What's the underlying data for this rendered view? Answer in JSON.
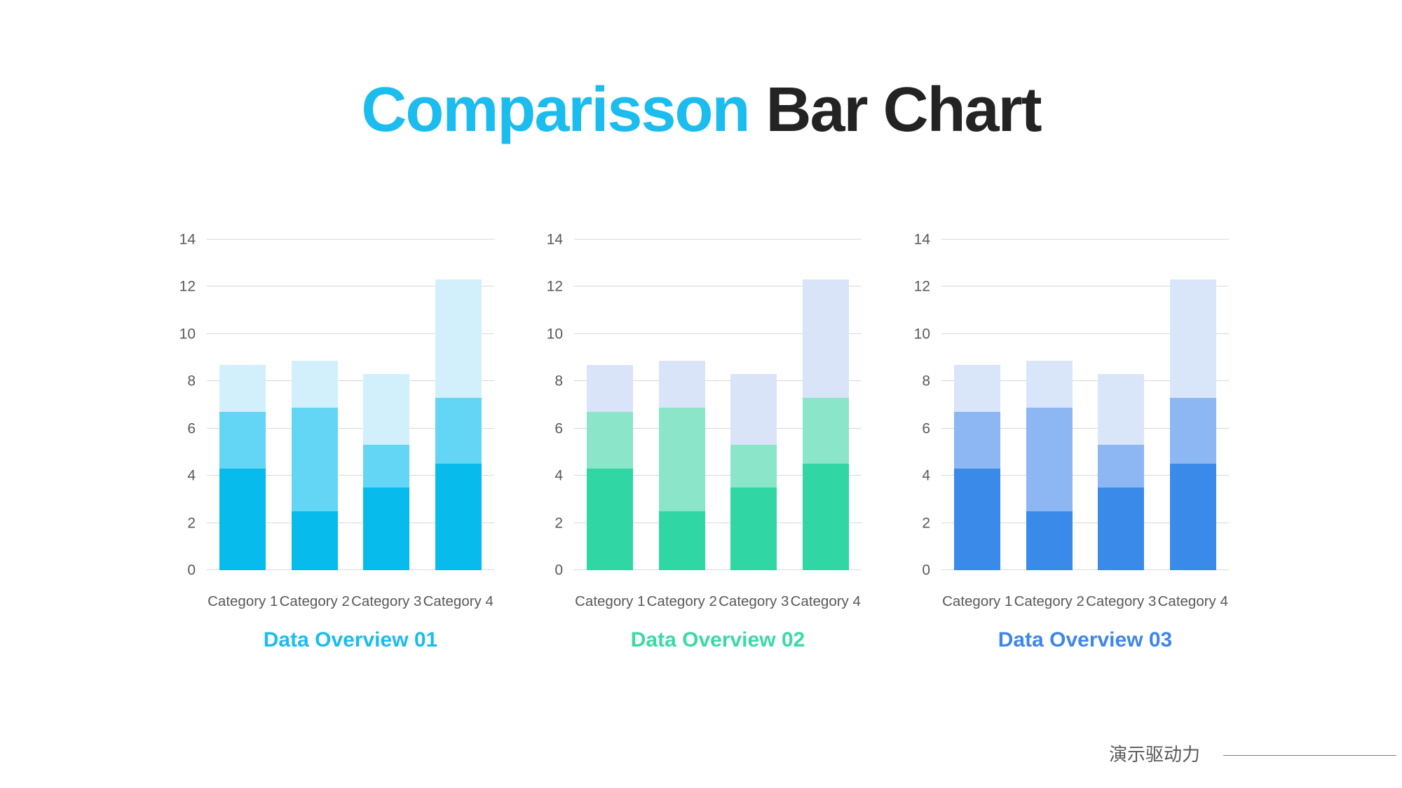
{
  "slide": {
    "title_accent": "Comparisson",
    "title_rest": "Bar Chart",
    "accent_color": "#1bbcee",
    "title_color": "#232323"
  },
  "axis": {
    "label_color": "#595959",
    "gridline_color": "#d9d9d9"
  },
  "chart_data": [
    {
      "type": "bar",
      "stacked": true,
      "title": "Data Overview 01",
      "title_color": "#1bbcee",
      "categories": [
        "Category 1",
        "Category 2",
        "Category 3",
        "Category 4"
      ],
      "series": [
        {
          "name": "bottom-segment",
          "color": "#07bcec",
          "values": [
            4.3,
            2.5,
            3.5,
            4.5
          ]
        },
        {
          "name": "middle-segment",
          "color": "#63d5f5",
          "values": [
            2.4,
            4.4,
            1.8,
            2.8
          ]
        },
        {
          "name": "top-segment",
          "color": "#d2effc",
          "values": [
            2.0,
            2.0,
            3.0,
            5.0
          ]
        }
      ],
      "stack_totals": [
        8.7,
        8.9,
        8.3,
        12.3
      ],
      "ylim": [
        0,
        14
      ],
      "yticks": [
        0,
        2,
        4,
        6,
        8,
        10,
        12,
        14
      ],
      "grid": true,
      "legend": false
    },
    {
      "type": "bar",
      "stacked": true,
      "title": "Data Overview 02",
      "title_color": "#3cd9a4",
      "categories": [
        "Category 1",
        "Category 2",
        "Category 3",
        "Category 4"
      ],
      "series": [
        {
          "name": "bottom-segment",
          "color": "#30d6a3",
          "values": [
            4.3,
            2.5,
            3.5,
            4.5
          ]
        },
        {
          "name": "middle-segment",
          "color": "#8be6c9",
          "values": [
            2.4,
            4.4,
            1.8,
            2.8
          ]
        },
        {
          "name": "top-segment",
          "color": "#d9e4f8",
          "values": [
            2.0,
            2.0,
            3.0,
            5.0
          ]
        }
      ],
      "stack_totals": [
        8.7,
        8.9,
        8.3,
        12.3
      ],
      "ylim": [
        0,
        14
      ],
      "yticks": [
        0,
        2,
        4,
        6,
        8,
        10,
        12,
        14
      ],
      "grid": true,
      "legend": false
    },
    {
      "type": "bar",
      "stacked": true,
      "title": "Data Overview 03",
      "title_color": "#3e86e8",
      "categories": [
        "Category 1",
        "Category 2",
        "Category 3",
        "Category 4"
      ],
      "series": [
        {
          "name": "bottom-segment",
          "color": "#3a8be9",
          "values": [
            4.3,
            2.5,
            3.5,
            4.5
          ]
        },
        {
          "name": "middle-segment",
          "color": "#8cb7f2",
          "values": [
            2.4,
            4.4,
            1.8,
            2.8
          ]
        },
        {
          "name": "top-segment",
          "color": "#d9e6f9",
          "values": [
            2.0,
            2.0,
            3.0,
            5.0
          ]
        }
      ],
      "stack_totals": [
        8.7,
        8.9,
        8.3,
        12.3
      ],
      "ylim": [
        0,
        14
      ],
      "yticks": [
        0,
        2,
        4,
        6,
        8,
        10,
        12,
        14
      ],
      "grid": true,
      "legend": false
    }
  ],
  "footer": {
    "brand": "演示驱动力",
    "text_color": "#595959",
    "line_color": "#7f7f7f"
  }
}
